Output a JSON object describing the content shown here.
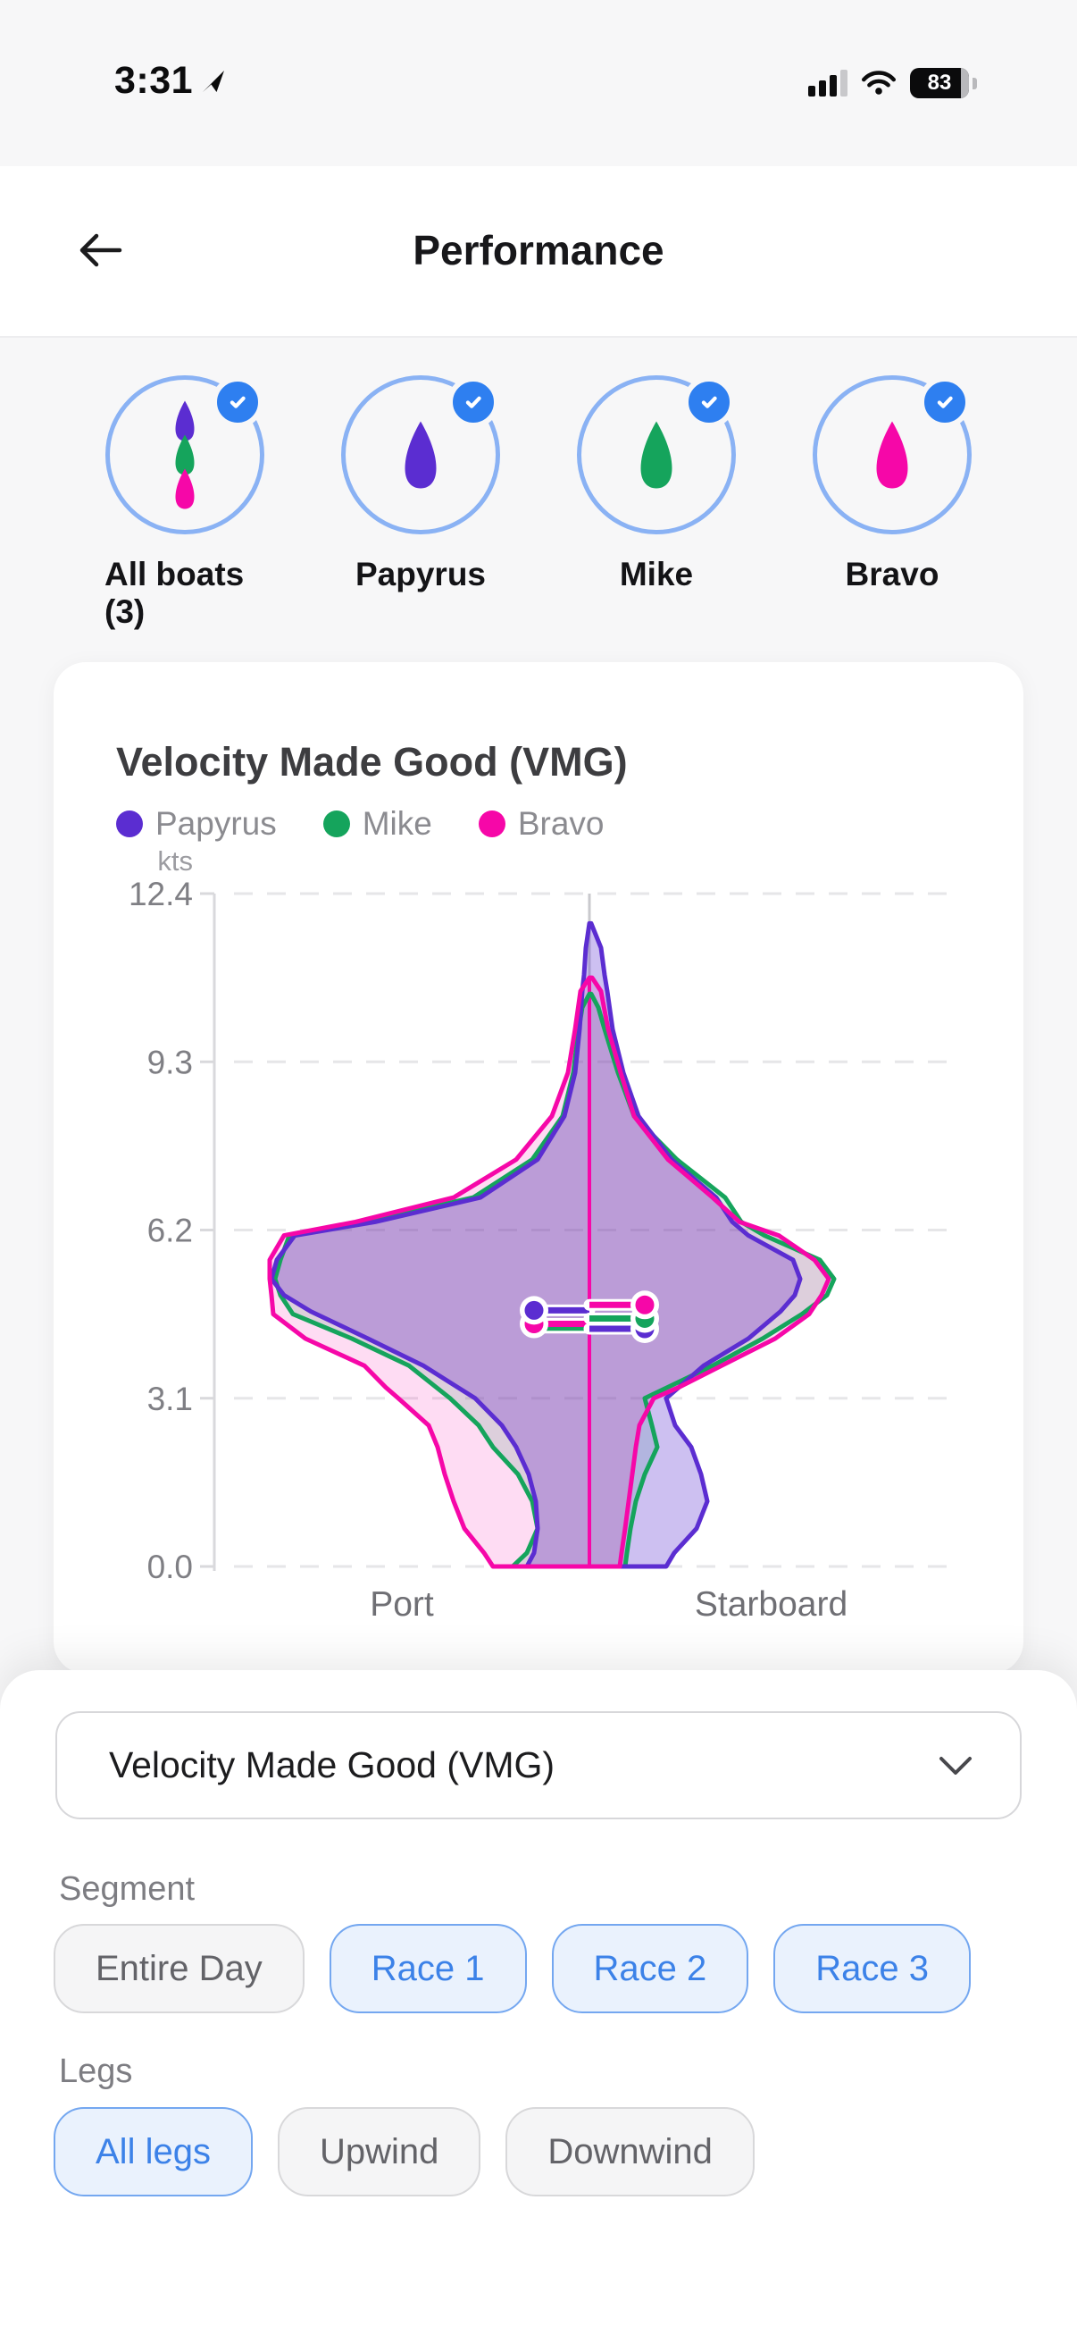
{
  "status_bar": {
    "time": "3:31",
    "battery_percent": "83"
  },
  "icons": {
    "back": "arrow-left",
    "location": "location-arrow",
    "signal": "cellular-signal-3of4",
    "wifi": "wifi-full",
    "battery": "battery-filled",
    "check": "checkmark",
    "chevron": "chevron-down"
  },
  "header": {
    "title": "Performance"
  },
  "boats": {
    "items": [
      {
        "label": "All boats (3)",
        "selected": true,
        "hulls": [
          "#5b2dd1",
          "#15a45c",
          "#f607a8"
        ]
      },
      {
        "label": "Papyrus",
        "selected": true,
        "hulls": [
          "#5b2dd1"
        ]
      },
      {
        "label": "Mike",
        "selected": true,
        "hulls": [
          "#15a45c"
        ]
      },
      {
        "label": "Bravo",
        "selected": true,
        "hulls": [
          "#f607a8"
        ]
      }
    ]
  },
  "chart_card": {
    "title": "Velocity Made Good (VMG)",
    "legend": [
      {
        "label": "Papyrus",
        "color": "#5b2dd1"
      },
      {
        "label": "Mike",
        "color": "#15a45c"
      },
      {
        "label": "Bravo",
        "color": "#f607a8"
      }
    ]
  },
  "chart_data": {
    "type": "violin",
    "title": "Velocity Made Good (VMG)",
    "unit": "kts",
    "ylim": [
      0,
      12.4
    ],
    "y_ticks": [
      12.4,
      9.3,
      6.2,
      3.1,
      0.0
    ],
    "categories": [
      "Port",
      "Starboard"
    ],
    "grid": "horizontal-dashed",
    "legend_position": "top-left",
    "center_line_color": "#f607a8",
    "series": [
      {
        "name": "Mike",
        "color": "#15a45c",
        "fill": "rgba(21,164,92,0.16)",
        "peak_kts": 10.55,
        "profile": [
          [
            10.55,
            0,
            2
          ],
          [
            10.3,
            8,
            10
          ],
          [
            9.9,
            12,
            17
          ],
          [
            9.1,
            18,
            32
          ],
          [
            8.3,
            30,
            50
          ],
          [
            7.5,
            64,
            98
          ],
          [
            6.8,
            130,
            152
          ],
          [
            6.35,
            250,
            170
          ],
          [
            6.1,
            336,
            196
          ],
          [
            5.65,
            346,
            258
          ],
          [
            5.3,
            352,
            274
          ],
          [
            5.0,
            346,
            266
          ],
          [
            4.65,
            332,
            238
          ],
          [
            4.2,
            266,
            194
          ],
          [
            3.7,
            202,
            138
          ],
          [
            3.1,
            156,
            62
          ],
          [
            2.6,
            124,
            70
          ],
          [
            2.2,
            108,
            76
          ],
          [
            1.7,
            80,
            62
          ],
          [
            1.2,
            64,
            52
          ],
          [
            0.7,
            58,
            46
          ],
          [
            0.25,
            70,
            42
          ],
          [
            0,
            86,
            40
          ]
        ]
      },
      {
        "name": "Papyrus",
        "color": "#5b2dd1",
        "fill": "rgba(91,45,209,0.30)",
        "peak_kts": 11.85,
        "profile": [
          [
            11.85,
            0,
            2
          ],
          [
            11.4,
            4,
            13
          ],
          [
            10.9,
            6,
            17
          ],
          [
            10.6,
            8,
            20
          ],
          [
            9.9,
            11,
            26
          ],
          [
            9.1,
            16,
            38
          ],
          [
            8.3,
            28,
            55
          ],
          [
            7.5,
            58,
            92
          ],
          [
            6.8,
            122,
            142
          ],
          [
            6.35,
            240,
            160
          ],
          [
            6.1,
            330,
            178
          ],
          [
            5.65,
            350,
            228
          ],
          [
            5.3,
            356,
            236
          ],
          [
            5.0,
            342,
            230
          ],
          [
            4.7,
            312,
            214
          ],
          [
            4.2,
            248,
            178
          ],
          [
            3.7,
            186,
            128
          ],
          [
            3.1,
            128,
            86
          ],
          [
            2.6,
            98,
            96
          ],
          [
            2.2,
            82,
            114
          ],
          [
            1.7,
            68,
            125
          ],
          [
            1.2,
            60,
            132
          ],
          [
            0.7,
            58,
            120
          ],
          [
            0.25,
            62,
            95
          ],
          [
            0,
            70,
            86
          ]
        ]
      },
      {
        "name": "Bravo",
        "color": "#f607a8",
        "fill": "rgba(246,7,168,0.14)",
        "peak_kts": 10.85,
        "profile": [
          [
            10.85,
            0,
            3
          ],
          [
            10.6,
            10,
            13
          ],
          [
            9.9,
            16,
            21
          ],
          [
            9.1,
            24,
            35
          ],
          [
            8.3,
            42,
            50
          ],
          [
            7.5,
            82,
            88
          ],
          [
            6.8,
            152,
            138
          ],
          [
            6.35,
            262,
            168
          ],
          [
            6.1,
            342,
            212
          ],
          [
            5.65,
            358,
            252
          ],
          [
            5.3,
            358,
            268
          ],
          [
            5.0,
            356,
            260
          ],
          [
            4.65,
            354,
            246
          ],
          [
            4.2,
            318,
            208
          ],
          [
            3.7,
            252,
            148
          ],
          [
            3.3,
            228,
            100
          ],
          [
            3.1,
            214,
            72
          ],
          [
            2.6,
            180,
            56
          ],
          [
            2.2,
            170,
            52
          ],
          [
            1.7,
            162,
            48
          ],
          [
            1.2,
            152,
            44
          ],
          [
            0.7,
            140,
            40
          ],
          [
            0.25,
            118,
            36
          ],
          [
            0,
            108,
            34
          ]
        ]
      }
    ],
    "medians_kts": {
      "port": [
        {
          "series": "Mike",
          "kts": 4.4,
          "dot": false
        },
        {
          "series": "Bravo",
          "kts": 4.47,
          "dot": true
        },
        {
          "series": "Papyrus",
          "kts": 4.72,
          "dot": true
        }
      ],
      "starboard": [
        {
          "series": "Papyrus",
          "kts": 4.38,
          "dot": true
        },
        {
          "series": "Mike",
          "kts": 4.57,
          "dot": true
        },
        {
          "series": "Bravo",
          "kts": 4.82,
          "dot": true
        }
      ]
    }
  },
  "controls": {
    "metric_select": {
      "value": "Velocity Made Good (VMG)"
    },
    "segment": {
      "label": "Segment",
      "options": [
        {
          "label": "Entire Day",
          "selected": false
        },
        {
          "label": "Race 1",
          "selected": true
        },
        {
          "label": "Race 2",
          "selected": true
        },
        {
          "label": "Race 3",
          "selected": true
        }
      ]
    },
    "legs": {
      "label": "Legs",
      "options": [
        {
          "label": "All legs",
          "selected": true
        },
        {
          "label": "Upwind",
          "selected": false
        },
        {
          "label": "Downwind",
          "selected": false
        }
      ]
    }
  }
}
